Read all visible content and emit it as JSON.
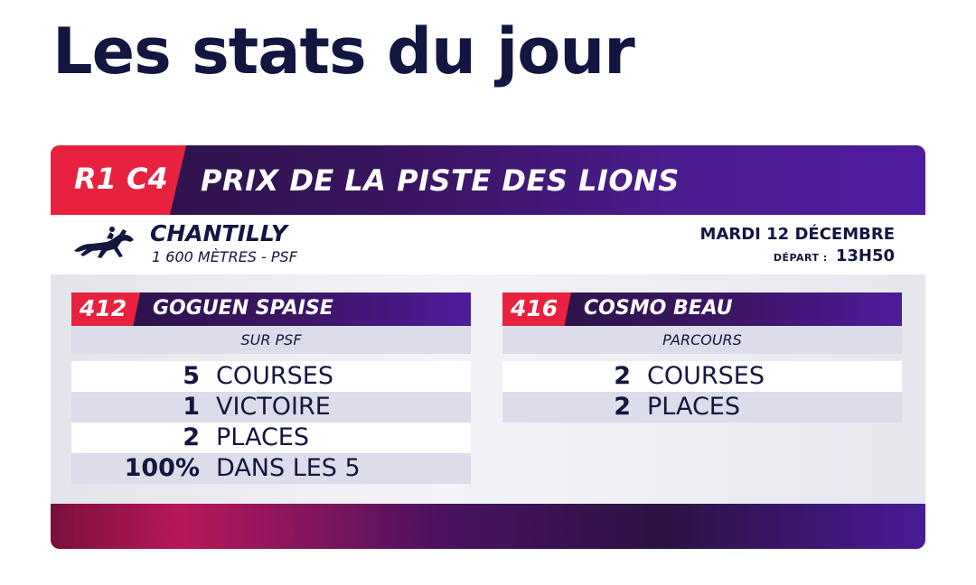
{
  "title": "Les stats du jour",
  "race": {
    "code": "R1 C4",
    "name": "PRIX DE LA PISTE DES LIONS",
    "venue": "CHANTILLY",
    "distance": "1 600 MÈTRES - PSF",
    "date": "MARDI 12 DÉCEMBRE",
    "depart_label": "DÉPART :",
    "depart_time": "13H50"
  },
  "horses": [
    {
      "number": "412",
      "name": "GOGUEN SPAISE",
      "subtitle": "SUR PSF",
      "stats": [
        {
          "value": "5",
          "label": "COURSES"
        },
        {
          "value": "1",
          "label": "VICTOIRE"
        },
        {
          "value": "2",
          "label": "PLACES"
        },
        {
          "value": "100%",
          "label": "DANS LES 5"
        }
      ]
    },
    {
      "number": "416",
      "name": "COSMO BEAU",
      "subtitle": "PARCOURS",
      "stats": [
        {
          "value": "2",
          "label": "COURSES"
        },
        {
          "value": "2",
          "label": "PLACES"
        }
      ]
    }
  ],
  "icons": {
    "venue_icon": "racehorse-jockey-icon"
  },
  "colors": {
    "accent_red": "#e8223e",
    "brand_purple": "#4e1c9c",
    "navy_text": "#13163f"
  }
}
